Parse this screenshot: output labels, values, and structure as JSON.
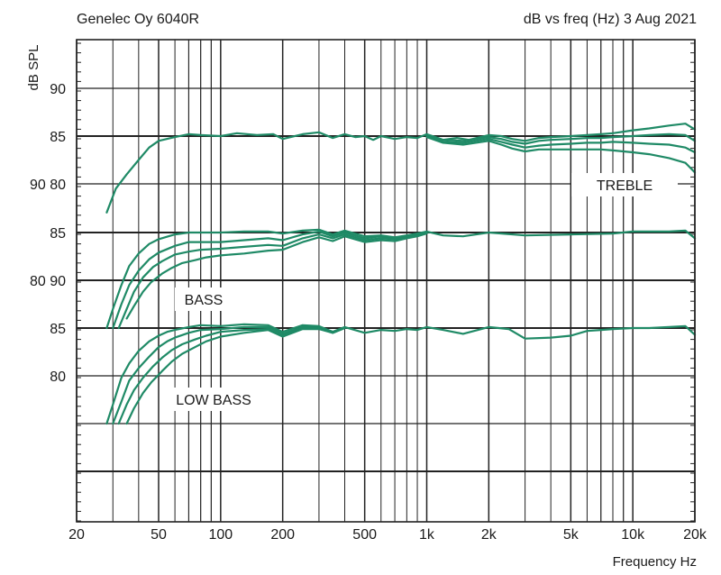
{
  "chart_data": {
    "type": "line",
    "title_left": "Genelec Oy 6040R",
    "title_right": "dB vs freq (Hz) 3 Aug 2021",
    "ylabel": "dB SPL",
    "xlabel": "Frequency Hz",
    "x_scale": "log",
    "xlim": [
      20,
      20000
    ],
    "x_ticks": [
      {
        "value": 20,
        "label": "20"
      },
      {
        "value": 50,
        "label": "50"
      },
      {
        "value": 100,
        "label": "100"
      },
      {
        "value": 200,
        "label": "200"
      },
      {
        "value": 500,
        "label": "500"
      },
      {
        "value": 1000,
        "label": "1k"
      },
      {
        "value": 2000,
        "label": "2k"
      },
      {
        "value": 5000,
        "label": "5k"
      },
      {
        "value": 10000,
        "label": "10k"
      },
      {
        "value": 20000,
        "label": "20k"
      }
    ],
    "y_tick_labels": [
      {
        "text": "90",
        "dB": 90,
        "panel": "treble"
      },
      {
        "text": "85",
        "dB": 85,
        "panel": "treble"
      },
      {
        "text": "90 80",
        "dB": 80,
        "panel": "treble"
      },
      {
        "text": "85",
        "dB": 85,
        "panel": "bass"
      },
      {
        "text": "80 90",
        "dB": 80,
        "panel": "bass"
      },
      {
        "text": "85",
        "dB": 85,
        "panel": "lowbass"
      },
      {
        "text": "80",
        "dB": 80,
        "panel": "lowbass"
      }
    ],
    "grid": true,
    "line_color": "#1f8a66",
    "annotations": [
      {
        "text": "TREBLE",
        "panel": "treble"
      },
      {
        "text": "BASS",
        "panel": "bass"
      },
      {
        "text": "LOW BASS",
        "panel": "lowbass"
      }
    ],
    "panels": [
      {
        "id": "treble",
        "label": "TREBLE",
        "ref85": 85,
        "series": [
          {
            "x": [
              28,
              31,
              35,
              40,
              45,
              50,
              60,
              70,
              80,
              100,
              120,
              150,
              180,
              200,
              250,
              300,
              350,
              400,
              450,
              500,
              550,
              600,
              700,
              800,
              900,
              1000,
              1100,
              1200,
              1400,
              1600,
              2000,
              2300,
              2600,
              3000,
              3500,
              4000,
              5000,
              6000,
              7000,
              8000,
              10000,
              12000,
              15000,
              18000,
              20000
            ],
            "y": [
              77,
              79.5,
              81,
              82.5,
              83.8,
              84.5,
              84.9,
              85.2,
              85.1,
              85,
              85.3,
              85.1,
              85.2,
              84.7,
              85.2,
              85.4,
              84.8,
              85.2,
              84.9,
              85,
              84.6,
              85,
              84.7,
              84.9,
              84.8,
              85.2,
              84.9,
              84.6,
              84.8,
              84.6,
              85.1,
              85,
              84.7,
              84.5,
              84.8,
              84.9,
              85,
              85.1,
              85.2,
              85.3,
              85.6,
              85.8,
              86.1,
              86.3,
              85.7
            ]
          },
          {
            "x": [
              1000,
              1200,
              1500,
              2000,
              2300,
              2600,
              3000,
              3500,
              4000,
              5000,
              6000,
              7000,
              8000,
              10000,
              12000,
              15000,
              18000,
              20000
            ],
            "y": [
              85.1,
              84.6,
              84.5,
              84.9,
              84.7,
              84.4,
              84.2,
              84.5,
              84.6,
              84.7,
              84.8,
              84.8,
              84.9,
              85,
              85.1,
              85.2,
              85.1,
              84.5
            ]
          },
          {
            "x": [
              1000,
              1200,
              1500,
              2000,
              2300,
              2600,
              3000,
              3500,
              4000,
              5000,
              6000,
              7000,
              8000,
              10000,
              12000,
              15000,
              18000,
              20000
            ],
            "y": [
              85,
              84.4,
              84.3,
              84.7,
              84.4,
              84.1,
              83.8,
              84,
              84.1,
              84.2,
              84.3,
              84.3,
              84.4,
              84.3,
              84.2,
              84.1,
              83.8,
              83.3
            ]
          },
          {
            "x": [
              1000,
              1200,
              1500,
              2000,
              2300,
              2600,
              3000,
              3500,
              4000,
              5000,
              6000,
              7000,
              8000,
              10000,
              12000,
              15000,
              18000,
              20000
            ],
            "y": [
              84.9,
              84.3,
              84.1,
              84.5,
              84.1,
              83.7,
              83.4,
              83.6,
              83.6,
              83.6,
              83.6,
              83.6,
              83.5,
              83.3,
              83.1,
              82.7,
              82.2,
              81.2
            ]
          }
        ]
      },
      {
        "id": "bass",
        "label": "BASS",
        "ref85": 85,
        "series": [
          {
            "x": [
              28,
              30,
              33,
              36,
              40,
              45,
              50,
              60,
              70,
              80,
              100,
              130,
              170,
              200,
              250,
              300,
              350,
              400,
              500,
              600,
              700,
              800,
              900,
              1000,
              1200,
              1500,
              2000,
              3000,
              5000,
              8000,
              10000,
              15000,
              18000,
              20000
            ],
            "y": [
              75,
              77,
              79.5,
              81.5,
              82.8,
              83.8,
              84.3,
              84.8,
              85,
              85,
              85,
              85.1,
              85.1,
              84.9,
              85.2,
              85.3,
              84.8,
              85.2,
              84.6,
              84.7,
              84.5,
              84.7,
              84.9,
              85.1,
              84.7,
              84.6,
              85,
              84.7,
              84.8,
              84.9,
              85.1,
              85.1,
              85.2,
              84.4
            ]
          },
          {
            "x": [
              30,
              33,
              36,
              40,
              45,
              50,
              60,
              70,
              80,
              100,
              130,
              170,
              200,
              250,
              300,
              350,
              400,
              500,
              600,
              700,
              800,
              900,
              1000
            ],
            "y": [
              75,
              77.5,
              79.5,
              81,
              82.2,
              82.9,
              83.6,
              84,
              84,
              84,
              84.2,
              84.4,
              84.2,
              84.8,
              85.1,
              84.6,
              85,
              84.4,
              84.6,
              84.4,
              84.6,
              84.8,
              85
            ]
          },
          {
            "x": [
              32,
              35,
              38,
              42,
              47,
              52,
              60,
              70,
              80,
              100,
              130,
              170,
              200,
              250,
              300,
              350,
              400,
              500,
              600,
              700,
              800,
              900,
              1000
            ],
            "y": [
              75,
              77,
              78.8,
              80.3,
              81.4,
              82,
              82.7,
              83,
              83.2,
              83.3,
              83.5,
              83.7,
              83.6,
              84.4,
              84.8,
              84.4,
              84.8,
              84.2,
              84.4,
              84.3,
              84.5,
              84.7,
              85
            ]
          },
          {
            "x": [
              35,
              38,
              42,
              46,
              52,
              58,
              65,
              75,
              85,
              100,
              130,
              170,
              200,
              250,
              300,
              350,
              400,
              500,
              600,
              700,
              800,
              900,
              1000
            ],
            "y": [
              76,
              77.3,
              78.8,
              79.8,
              80.7,
              81.3,
              81.8,
              82.1,
              82.4,
              82.6,
              82.8,
              83.1,
              83.2,
              84,
              84.5,
              84.1,
              84.6,
              84,
              84.2,
              84.1,
              84.4,
              84.6,
              84.9
            ]
          }
        ]
      },
      {
        "id": "lowbass",
        "label": "LOW BASS",
        "ref85": 85,
        "series": [
          {
            "x": [
              28,
              30,
              33,
              36,
              40,
              45,
              50,
              55,
              60,
              70,
              80,
              100,
              130,
              170,
              200,
              250,
              300,
              350,
              400,
              500,
              600,
              700,
              800,
              900,
              1000,
              1200,
              1500,
              2000,
              2500,
              3000,
              4000,
              5000,
              6000,
              7000,
              8000,
              10000,
              12000,
              15000,
              18000,
              20000
            ],
            "y": [
              75,
              77,
              79.8,
              81.3,
              82.6,
              83.6,
              84.2,
              84.6,
              84.8,
              85.1,
              85.3,
              85.2,
              85.4,
              85.3,
              84.6,
              85.3,
              85.2,
              84.6,
              85.1,
              84.5,
              84.8,
              84.7,
              84.9,
              84.8,
              85.1,
              84.8,
              84.4,
              85.1,
              84.9,
              83.9,
              84,
              84.2,
              84.7,
              84.8,
              84.9,
              85,
              85,
              85.1,
              85.2,
              84.3
            ]
          },
          {
            "x": [
              30,
              33,
              36,
              40,
              45,
              50,
              55,
              60,
              70,
              80,
              100,
              130,
              170,
              200,
              250,
              300,
              350,
              400
            ],
            "y": [
              75,
              77.3,
              79.5,
              80.8,
              82,
              83,
              83.6,
              84,
              84.5,
              84.8,
              84.9,
              85.1,
              85.1,
              84.4,
              85.1,
              85.1,
              84.6,
              85
            ]
          },
          {
            "x": [
              32,
              35,
              38,
              42,
              47,
              52,
              58,
              65,
              75,
              85,
              100,
              130,
              170,
              200,
              250,
              300,
              350,
              400
            ],
            "y": [
              75,
              77,
              78.5,
              79.8,
              81,
              81.9,
              82.7,
              83.3,
              83.8,
              84.2,
              84.6,
              84.8,
              84.9,
              84.2,
              85,
              85,
              84.5,
              85
            ]
          },
          {
            "x": [
              35,
              38,
              42,
              46,
              52,
              58,
              65,
              75,
              85,
              100,
              130,
              170,
              200,
              250,
              300,
              350,
              400
            ],
            "y": [
              75,
              76.6,
              78.2,
              79.3,
              80.5,
              81.5,
              82.3,
              83,
              83.6,
              84.1,
              84.5,
              84.8,
              84.1,
              84.9,
              84.9,
              84.5,
              85
            ]
          }
        ]
      }
    ]
  }
}
